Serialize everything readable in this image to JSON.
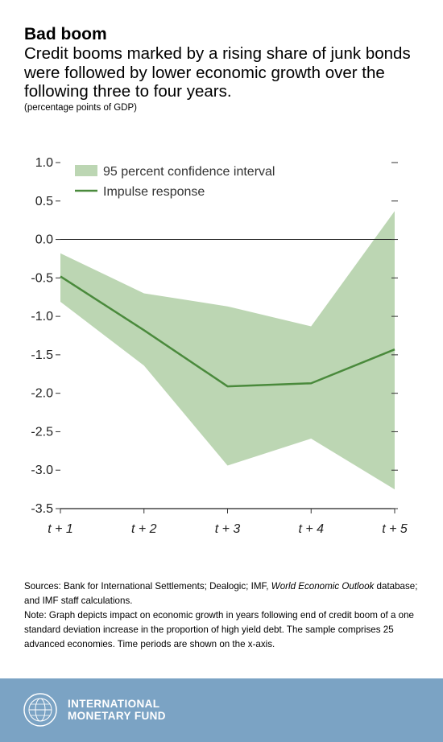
{
  "header": {
    "title": "Bad boom",
    "subtitle": "Credit booms marked by a rising share of junk bonds were followed by lower economic growth over the following three to four years.",
    "units": "(percentage points of GDP)"
  },
  "chart_data": {
    "type": "line",
    "x": [
      "t + 1",
      "t + 2",
      "t + 3",
      "t + 4",
      "t + 5"
    ],
    "ylim": [
      -3.5,
      1.0
    ],
    "yticks": [
      1.0,
      0.5,
      0.0,
      -0.5,
      -1.0,
      -1.5,
      -2.0,
      -2.5,
      -3.0,
      -3.5
    ],
    "ytick_labels": [
      "1.0",
      "0.5",
      "0.0",
      "-0.5",
      "-1.0",
      "-1.5",
      "-2.0",
      "-2.5",
      "-3.0",
      "-3.5"
    ],
    "series": [
      {
        "name": "Impulse response",
        "kind": "line",
        "color": "#4a8a3c",
        "values": [
          -0.48,
          -1.18,
          -1.91,
          -1.87,
          -1.43
        ]
      },
      {
        "name": "95 percent confidence interval",
        "kind": "band",
        "color": "#bcd6b3",
        "lower": [
          -0.81,
          -1.64,
          -2.94,
          -2.59,
          -3.25
        ],
        "upper": [
          -0.18,
          -0.7,
          -0.87,
          -1.13,
          0.37
        ]
      }
    ],
    "legend_placement": "top-left",
    "grid": false,
    "zero_line": true
  },
  "notes": {
    "sources_prefix": "Sources: Bank for International Settlements; Dealogic; IMF, ",
    "sources_italic": "World Economic Outlook",
    "sources_suffix": " database; and IMF staff calculations.",
    "note": "Note: Graph depicts impact on economic growth in years following end of credit boom of a one standard deviation increase in the proportion of high yield debt. The sample comprises 25 advanced economies. Time periods are shown on the x-axis."
  },
  "footer": {
    "org_line1": "INTERNATIONAL",
    "org_line2": "MONETARY FUND",
    "logo_icon": "imf-seal-icon"
  }
}
